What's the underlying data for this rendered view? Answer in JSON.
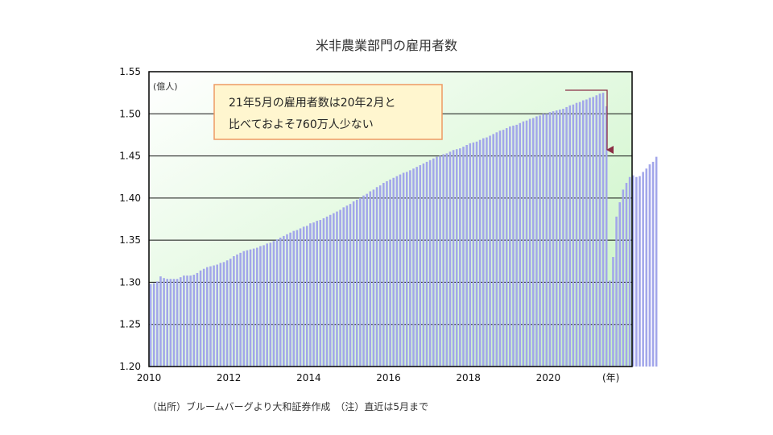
{
  "chart_data": {
    "type": "bar",
    "title": "米非農業部門の雇用者数",
    "ylabel": "(億人)",
    "xlabel": "(年)",
    "ylim": [
      1.2,
      1.55
    ],
    "yticks": [
      "1.20",
      "1.25",
      "1.30",
      "1.35",
      "1.40",
      "1.45",
      "1.50",
      "1.55"
    ],
    "xticks": [
      "2010",
      "2012",
      "2014",
      "2016",
      "2018",
      "2020"
    ],
    "x_start": "2010-01",
    "frequency": "monthly",
    "values": [
      1.298,
      1.299,
      1.301,
      1.307,
      1.305,
      1.304,
      1.304,
      1.304,
      1.304,
      1.306,
      1.308,
      1.308,
      1.308,
      1.309,
      1.311,
      1.314,
      1.316,
      1.318,
      1.319,
      1.32,
      1.321,
      1.323,
      1.324,
      1.326,
      1.328,
      1.331,
      1.333,
      1.335,
      1.337,
      1.338,
      1.339,
      1.34,
      1.341,
      1.343,
      1.344,
      1.346,
      1.347,
      1.349,
      1.351,
      1.353,
      1.355,
      1.357,
      1.359,
      1.361,
      1.362,
      1.364,
      1.366,
      1.367,
      1.37,
      1.371,
      1.373,
      1.374,
      1.376,
      1.378,
      1.38,
      1.382,
      1.384,
      1.386,
      1.389,
      1.391,
      1.393,
      1.396,
      1.398,
      1.4,
      1.403,
      1.405,
      1.408,
      1.41,
      1.413,
      1.415,
      1.418,
      1.42,
      1.422,
      1.424,
      1.426,
      1.428,
      1.43,
      1.431,
      1.433,
      1.435,
      1.437,
      1.439,
      1.441,
      1.443,
      1.445,
      1.447,
      1.449,
      1.45,
      1.452,
      1.453,
      1.455,
      1.457,
      1.458,
      1.459,
      1.461,
      1.463,
      1.465,
      1.466,
      1.467,
      1.469,
      1.471,
      1.472,
      1.474,
      1.476,
      1.478,
      1.48,
      1.481,
      1.483,
      1.485,
      1.486,
      1.487,
      1.489,
      1.491,
      1.492,
      1.494,
      1.495,
      1.497,
      1.498,
      1.5,
      1.5,
      1.502,
      1.503,
      1.504,
      1.505,
      1.506,
      1.508,
      1.51,
      1.511,
      1.513,
      1.514,
      1.516,
      1.517,
      1.519,
      1.52,
      1.522,
      1.524,
      1.525,
      1.509,
      1.302,
      1.33,
      1.378,
      1.395,
      1.41,
      1.418,
      1.425,
      1.427,
      1.425,
      1.426,
      1.431,
      1.435,
      1.44,
      1.443,
      1.449
    ],
    "annotation": {
      "line1": "21年5月の雇用者数は20年2月と",
      "line2": "比べておよそ760万人少ない"
    }
  },
  "footnote": "（出所）ブルームバーグより大和証券作成　（注）直近は5月まで",
  "colors": {
    "bar": "#a2a6ea",
    "plot_bg_top": "#ffffff",
    "plot_bg_bottom": "#c8f5c3",
    "callout_fill": "#fff6cf",
    "callout_border": "#ee9a63",
    "arrow": "#8b2e45"
  }
}
